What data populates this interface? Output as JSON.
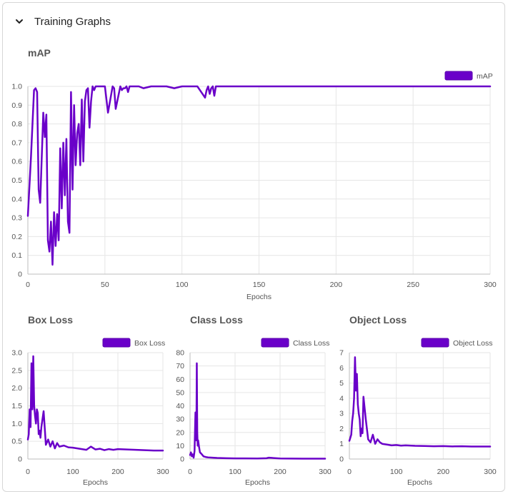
{
  "header": {
    "title": "Training Graphs",
    "toggle_icon": "chevron-down-icon"
  },
  "colors": {
    "accent": "#6a00c9"
  },
  "chart_data": [
    {
      "id": "map",
      "type": "line",
      "title": "mAP",
      "xlabel": "Epochs",
      "ylabel": "",
      "xlim": [
        0,
        300
      ],
      "ylim": [
        0,
        1.0
      ],
      "xticks": [
        0,
        50,
        100,
        150,
        200,
        250,
        300
      ],
      "yticks": [
        0,
        0.1,
        0.2,
        0.3,
        0.4,
        0.5,
        0.6,
        0.7,
        0.8,
        0.9,
        1.0
      ],
      "ytick_labels": [
        "0",
        "0.1",
        "0.2",
        "0.3",
        "0.4",
        "0.5",
        "0.6",
        "0.7",
        "0.8",
        "0.9",
        "1.0"
      ],
      "legend": {
        "placement": "top-right",
        "label": "mAP"
      },
      "series": [
        {
          "name": "mAP",
          "x": [
            0,
            2,
            4,
            5,
            6,
            7,
            8,
            10,
            11,
            12,
            13,
            14,
            15,
            16,
            17,
            18,
            19,
            20,
            21,
            22,
            23,
            24,
            25,
            26,
            27,
            28,
            29,
            30,
            31,
            32,
            33,
            34,
            35,
            36,
            37,
            38,
            39,
            40,
            41,
            42,
            43,
            44,
            45,
            46,
            47,
            48,
            49,
            50,
            52,
            55,
            56,
            57,
            60,
            61,
            62,
            63,
            64,
            65,
            66,
            68,
            70,
            72,
            75,
            80,
            90,
            95,
            100,
            105,
            110,
            115,
            116,
            117,
            118,
            119,
            120,
            121,
            122,
            125,
            150,
            200,
            250,
            300
          ],
          "y": [
            0.31,
            0.62,
            0.98,
            0.99,
            0.97,
            0.45,
            0.38,
            0.86,
            0.73,
            0.85,
            0.18,
            0.12,
            0.28,
            0.05,
            0.33,
            0.15,
            0.32,
            0.18,
            0.67,
            0.35,
            0.7,
            0.42,
            0.72,
            0.28,
            0.22,
            0.97,
            0.45,
            0.9,
            0.58,
            0.75,
            0.8,
            0.58,
            0.93,
            0.6,
            0.92,
            0.98,
            0.99,
            0.78,
            0.92,
            1.0,
            0.98,
            1.0,
            1.0,
            1.0,
            1.0,
            1.0,
            1.0,
            1.0,
            0.86,
            1.0,
            0.99,
            0.88,
            1.0,
            0.98,
            0.99,
            0.99,
            1.0,
            0.97,
            1.0,
            1.0,
            1.0,
            1.0,
            0.99,
            1.0,
            1.0,
            0.99,
            1.0,
            1.0,
            1.0,
            0.94,
            0.98,
            1.0,
            0.96,
            0.99,
            1.0,
            0.95,
            1.0,
            1.0,
            1.0,
            1.0,
            1.0,
            1.0
          ]
        }
      ]
    },
    {
      "id": "box",
      "type": "line",
      "title": "Box Loss",
      "xlabel": "Epochs",
      "ylabel": "",
      "xlim": [
        0,
        300
      ],
      "ylim": [
        0,
        3.0
      ],
      "xticks": [
        0,
        100,
        200,
        300
      ],
      "yticks": [
        0,
        0.5,
        1.0,
        1.5,
        2.0,
        2.5,
        3.0
      ],
      "ytick_labels": [
        "0",
        "0.5",
        "1.0",
        "1.5",
        "2.0",
        "2.5",
        "3.0"
      ],
      "legend": {
        "placement": "top-right",
        "label": "Box Loss"
      },
      "series": [
        {
          "name": "Box Loss",
          "x": [
            0,
            2,
            4,
            6,
            8,
            10,
            12,
            14,
            16,
            18,
            20,
            22,
            24,
            26,
            28,
            30,
            35,
            40,
            45,
            50,
            55,
            60,
            65,
            70,
            80,
            90,
            100,
            110,
            120,
            130,
            140,
            150,
            160,
            170,
            180,
            190,
            200,
            220,
            240,
            260,
            280,
            300
          ],
          "y": [
            0.55,
            0.7,
            1.4,
            0.9,
            2.7,
            1.4,
            2.9,
            1.5,
            1.2,
            1.0,
            1.4,
            1.3,
            0.7,
            0.8,
            0.6,
            0.9,
            1.35,
            0.4,
            0.55,
            0.35,
            0.5,
            0.3,
            0.45,
            0.35,
            0.38,
            0.33,
            0.32,
            0.3,
            0.28,
            0.26,
            0.35,
            0.27,
            0.29,
            0.25,
            0.28,
            0.26,
            0.28,
            0.27,
            0.26,
            0.25,
            0.24,
            0.24
          ]
        }
      ]
    },
    {
      "id": "class",
      "type": "line",
      "title": "Class Loss",
      "xlabel": "Epochs",
      "ylabel": "",
      "xlim": [
        0,
        300
      ],
      "ylim": [
        0,
        80
      ],
      "xticks": [
        0,
        100,
        200,
        300
      ],
      "yticks": [
        0,
        10,
        20,
        30,
        40,
        50,
        60,
        70,
        80
      ],
      "ytick_labels": [
        "0",
        "10",
        "20",
        "30",
        "40",
        "50",
        "60",
        "70",
        "80"
      ],
      "legend": {
        "placement": "top-right",
        "label": "Class Loss"
      },
      "series": [
        {
          "name": "Class Loss",
          "x": [
            0,
            2,
            4,
            6,
            8,
            10,
            12,
            14,
            15,
            16,
            17,
            18,
            20,
            22,
            25,
            30,
            35,
            40,
            50,
            60,
            80,
            100,
            120,
            150,
            170,
            175,
            200,
            250,
            300
          ],
          "y": [
            3.0,
            5.0,
            2.0,
            3.5,
            1.0,
            6.0,
            35.0,
            14.0,
            72.0,
            20.0,
            10.0,
            14.0,
            9.0,
            5.0,
            4.0,
            2.0,
            1.5,
            1.2,
            1.0,
            0.8,
            0.6,
            0.5,
            0.5,
            0.4,
            0.6,
            1.0,
            0.4,
            0.3,
            0.3
          ]
        }
      ]
    },
    {
      "id": "object",
      "type": "line",
      "title": "Object Loss",
      "xlabel": "Epochs",
      "ylabel": "",
      "xlim": [
        0,
        300
      ],
      "ylim": [
        0,
        7
      ],
      "xticks": [
        0,
        100,
        200,
        300
      ],
      "yticks": [
        0,
        1,
        2,
        3,
        4,
        5,
        6,
        7
      ],
      "ytick_labels": [
        "0",
        "1",
        "2",
        "3",
        "4",
        "5",
        "6",
        "7"
      ],
      "legend": {
        "placement": "top-right",
        "label": "Object Loss"
      },
      "series": [
        {
          "name": "Object Loss",
          "x": [
            0,
            2,
            4,
            6,
            8,
            10,
            12,
            14,
            16,
            18,
            20,
            22,
            24,
            26,
            28,
            30,
            35,
            40,
            45,
            50,
            55,
            60,
            65,
            70,
            80,
            90,
            100,
            110,
            120,
            140,
            160,
            180,
            200,
            220,
            240,
            260,
            280,
            300
          ],
          "y": [
            1.2,
            1.4,
            1.6,
            2.5,
            3.0,
            4.0,
            6.7,
            4.5,
            5.6,
            3.6,
            3.0,
            2.6,
            1.5,
            2.0,
            1.7,
            4.1,
            2.6,
            1.3,
            1.1,
            1.6,
            1.0,
            1.3,
            1.1,
            1.0,
            0.95,
            0.9,
            0.92,
            0.88,
            0.9,
            0.87,
            0.86,
            0.84,
            0.85,
            0.83,
            0.84,
            0.82,
            0.82,
            0.82
          ]
        }
      ]
    }
  ]
}
